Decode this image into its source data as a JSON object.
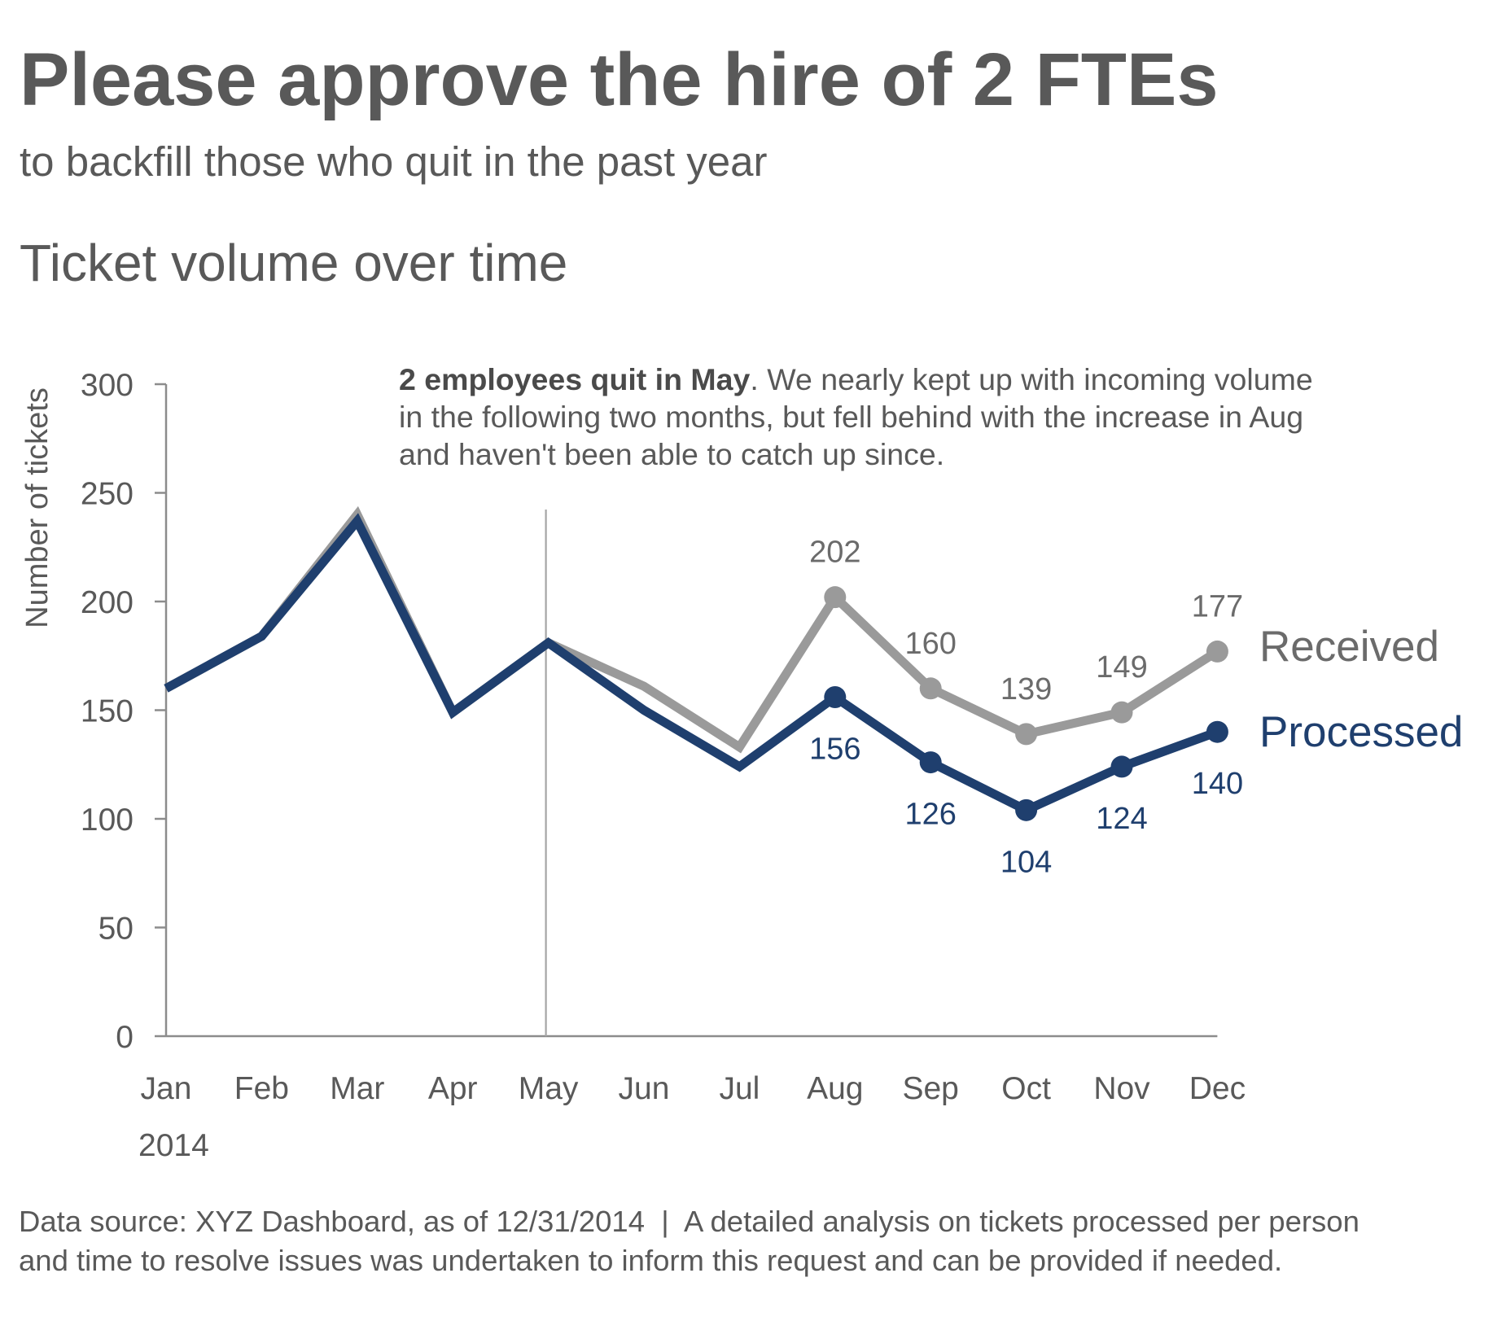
{
  "header": {
    "title": "Please approve the hire of 2 FTEs",
    "subtitle": "to backfill those who quit in the past year",
    "section_title": "Ticket volume over time"
  },
  "annotation": {
    "bold": "2 employees quit in May",
    "line1_rest": ". We nearly kept up with incoming volume",
    "line2": "in the following two months, but fell behind with the increase in Aug",
    "line3": "and haven't been able to catch up since."
  },
  "footer": {
    "line1": "Data source: XYZ Dashboard, as of 12/31/2014  |  A detailed analysis on tickets processed per person",
    "line2": "and time to resolve issues was undertaken to inform this request and can be provided if needed."
  },
  "colors": {
    "text": "#595959",
    "received": "#9a9a9a",
    "processed": "#1f3f6e",
    "axis": "#8c8c8c"
  },
  "chart_data": {
    "type": "line",
    "title": "Ticket volume over time",
    "xlabel": "2014",
    "ylabel": "Number of tickets",
    "ylim": [
      0,
      300
    ],
    "yticks": [
      0,
      50,
      100,
      150,
      200,
      250,
      300
    ],
    "categories": [
      "Jan",
      "Feb",
      "Mar",
      "Apr",
      "May",
      "Jun",
      "Jul",
      "Aug",
      "Sep",
      "Oct",
      "Nov",
      "Dec"
    ],
    "grid": false,
    "legend": "direct labels at right end of lines",
    "reference_line": {
      "category": "May",
      "note": "2 employees quit in May"
    },
    "series": [
      {
        "name": "Received",
        "values": [
          160,
          184,
          240,
          149,
          181,
          161,
          133,
          202,
          160,
          139,
          149,
          177
        ],
        "labeled_from": "Aug",
        "data_labels": [
          "202",
          "160",
          "139",
          "149",
          "177"
        ]
      },
      {
        "name": "Processed",
        "values": [
          160,
          184,
          237,
          149,
          181,
          150,
          124,
          156,
          126,
          104,
          124,
          140
        ],
        "labeled_from": "Aug",
        "data_labels": [
          "156",
          "126",
          "104",
          "124",
          "140"
        ]
      }
    ]
  }
}
